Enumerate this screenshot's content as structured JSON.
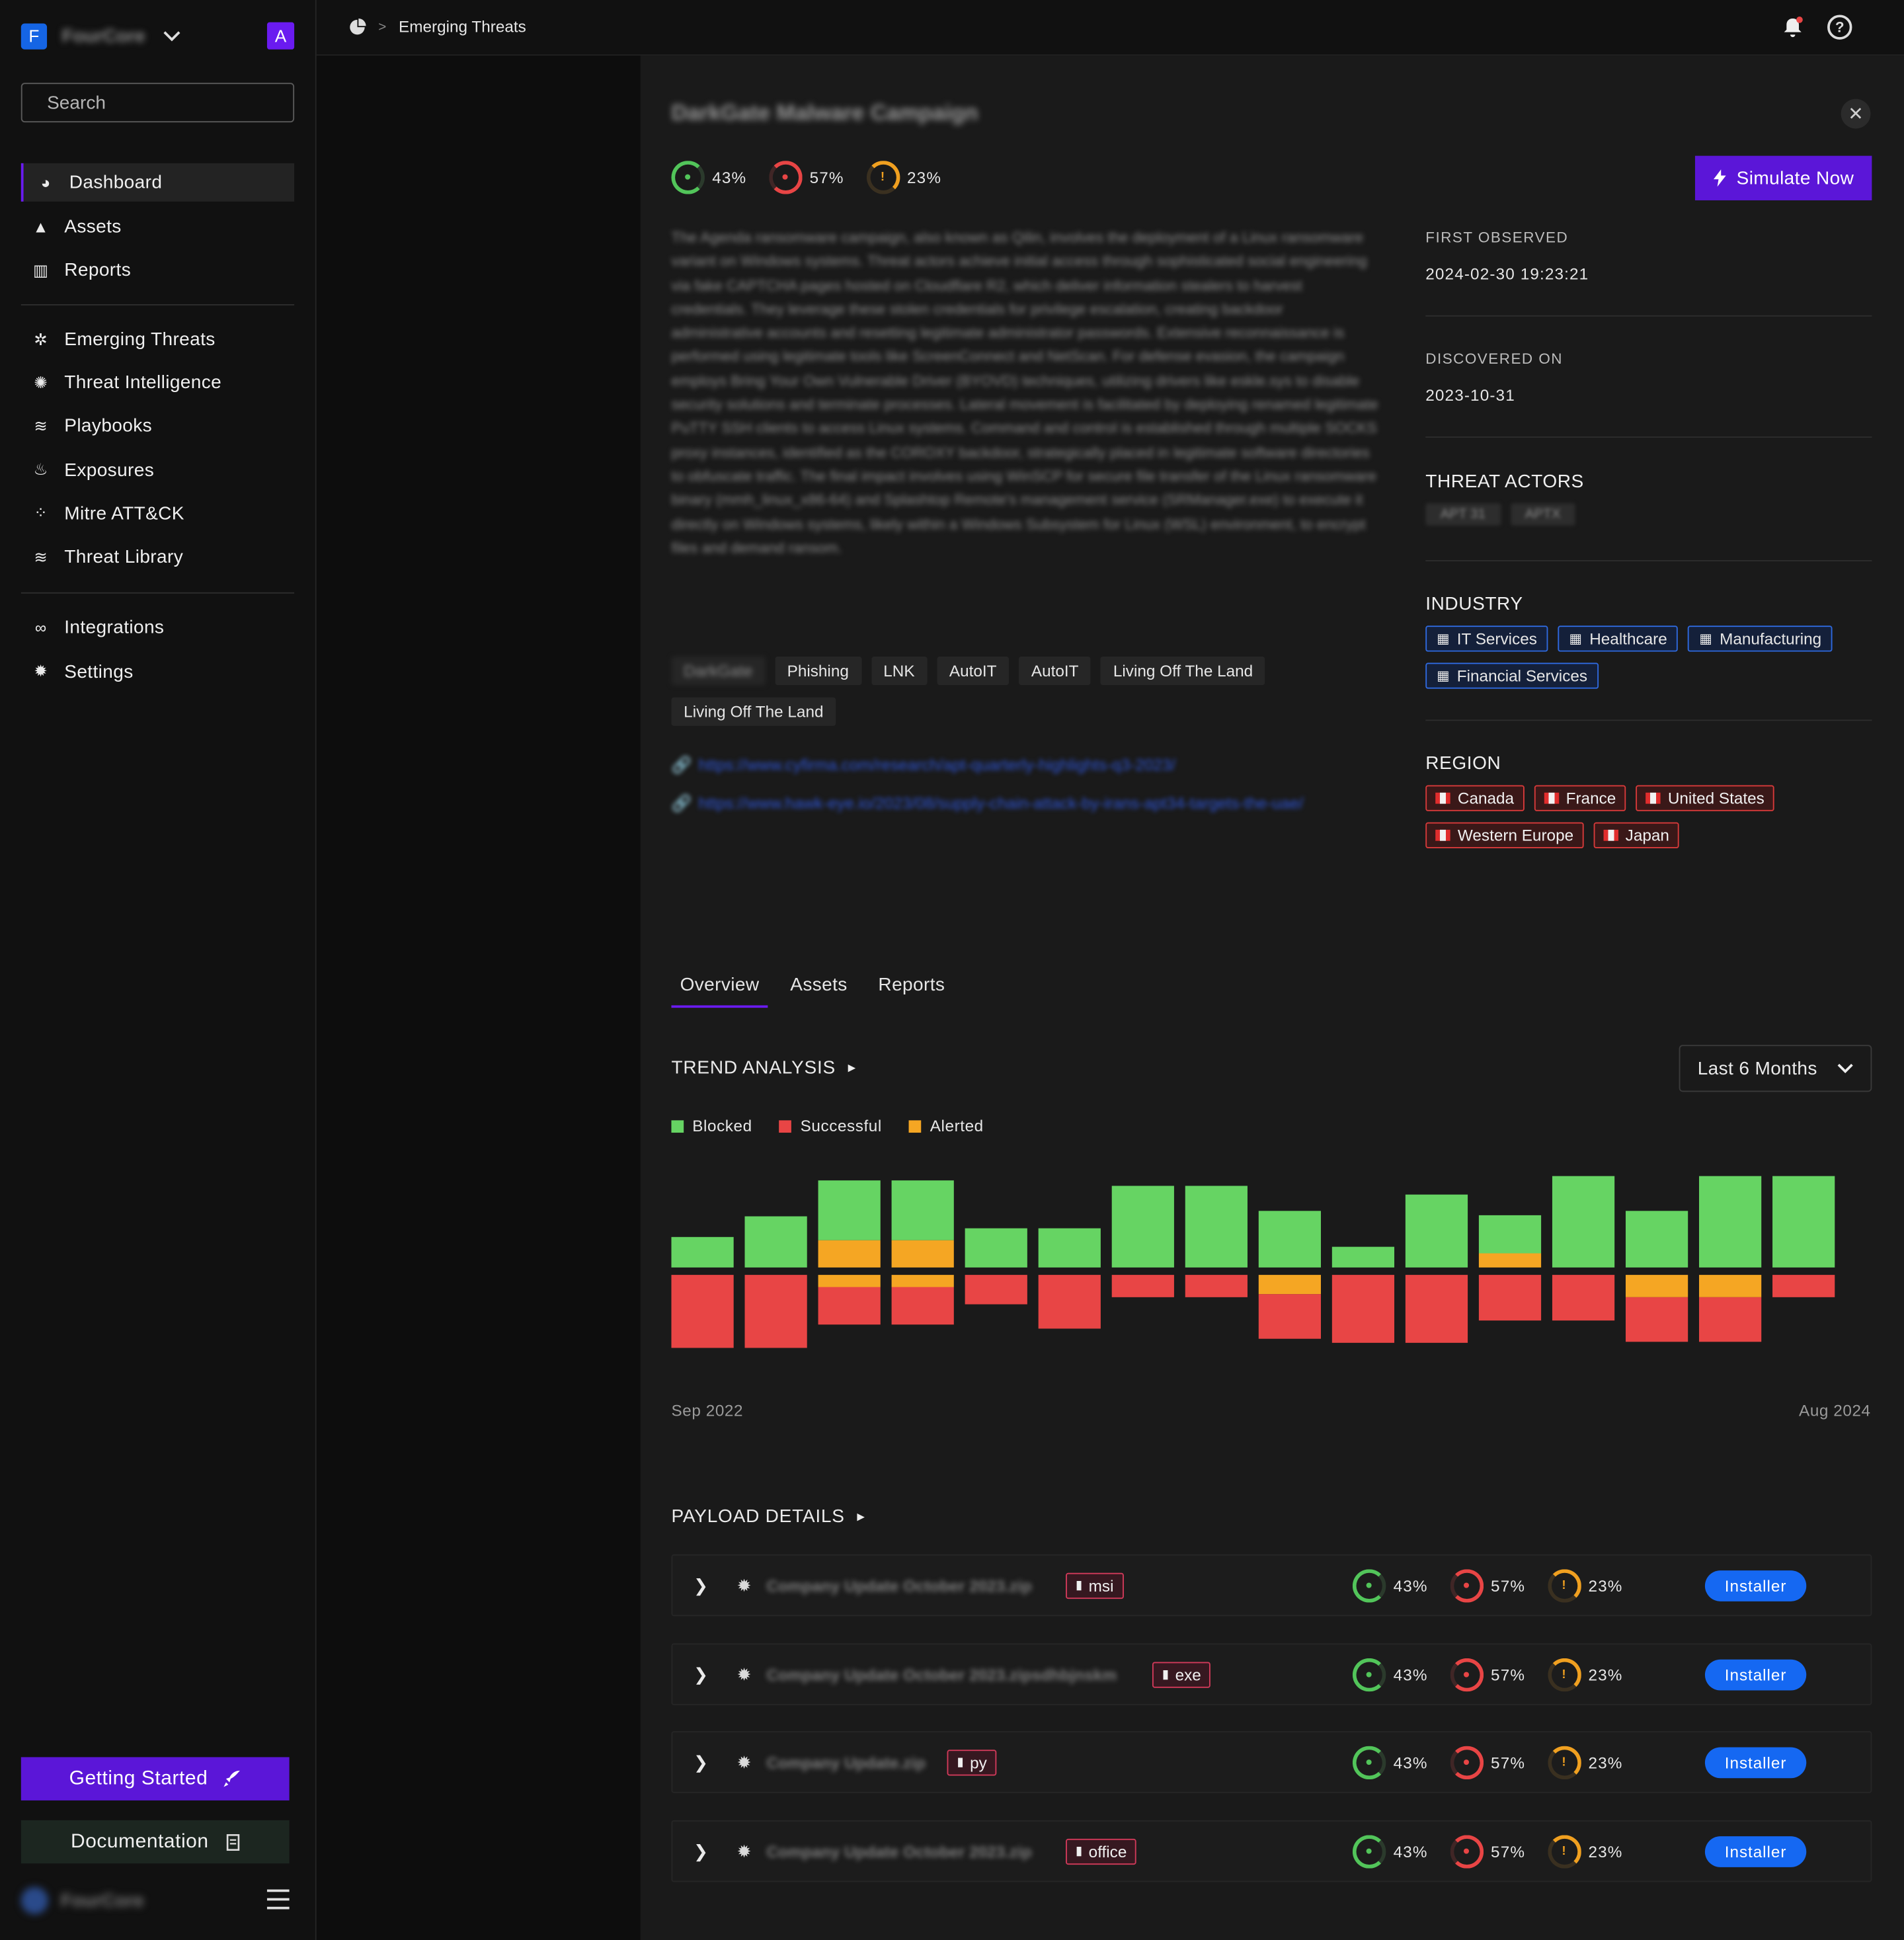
{
  "sidebar": {
    "org_initial": "F",
    "org_name": "FourCore",
    "user_initial": "A",
    "search_placeholder": "Search",
    "group1": [
      {
        "label": "Dashboard",
        "icon": "pie-chart-icon",
        "active": true
      },
      {
        "label": "Assets",
        "icon": "shapes-icon"
      },
      {
        "label": "Reports",
        "icon": "bar-chart-icon"
      }
    ],
    "group2": [
      {
        "label": "Emerging Threats",
        "icon": "bug-icon"
      },
      {
        "label": "Threat Intelligence",
        "icon": "brain-icon"
      },
      {
        "label": "Playbooks",
        "icon": "layers-icon"
      },
      {
        "label": "Exposures",
        "icon": "flame-icon"
      },
      {
        "label": "Mitre ATT&CK",
        "icon": "grid-icon"
      },
      {
        "label": "Threat Library",
        "icon": "stack-icon"
      }
    ],
    "group3": [
      {
        "label": "Integrations",
        "icon": "link-icon"
      },
      {
        "label": "Settings",
        "icon": "gear-icon"
      }
    ],
    "getting_started": "Getting Started",
    "documentation": "Documentation",
    "footer_logo": "FourCore"
  },
  "topbar": {
    "breadcrumb": "Emerging Threats"
  },
  "detail": {
    "title": "DarkGate Malware Campaign",
    "stats": {
      "blocked": "43%",
      "successful": "57%",
      "alerted": "23%"
    },
    "simulate_label": "Simulate Now",
    "description": "The Agenda ransomware campaign, also known as Qilin, involves the deployment of a Linux ransomware variant on Windows systems. Threat actors achieve initial access through sophisticated social engineering via fake CAPTCHA pages hosted on Cloudflare R2, which deliver information stealers to harvest credentials. They leverage these stolen credentials for privilege escalation, creating backdoor administrative accounts and resetting legitimate administrator passwords. Extensive reconnaissance is performed using legitimate tools like ScreenConnect and NetScan. For defense evasion, the campaign employs Bring Your Own Vulnerable Driver (BYOVD) techniques, utilizing drivers like eskle.sys to disable security solutions and terminate processes. Lateral movement is facilitated by deploying renamed legitimate PuTTY SSH clients to access Linux systems. Command and control is established through multiple SOCKS proxy instances, identified as the COROXY backdoor, strategically placed in legitimate software directories to obfuscate traffic. The final impact involves using WinSCP for secure file transfer of the Linux ransomware binary (mmh_linux_x86-64) and Splashtop Remote's management service (SRManager.exe) to execute it directly on Windows systems, likely within a Windows Subsystem for Linux (WSL) environment, to encrypt files and demand ransom.",
    "tags": [
      "DarkGate",
      "Phishing",
      "LNK",
      "AutoIT",
      "AutoIT",
      "Living Off The Land",
      "Living Off The Land"
    ],
    "links": [
      "https://www.cyfirma.com/research/apt-quarterly-highlights-q3-2023/",
      "https://www.hawk-eye.io/2023/08/supply-chain-attack-by-irans-apt34-targets-the-uae/"
    ],
    "first_observed_label": "FIRST OBSERVED",
    "first_observed": "2024-02-30 19:23:21",
    "discovered_label": "DISCOVERED ON",
    "discovered": "2023-10-31",
    "actors_label": "THREAT ACTORS",
    "actors": [
      "APT 31",
      "APTX"
    ],
    "industry_label": "INDUSTRY",
    "industries": [
      "IT Services",
      "Healthcare",
      "Manufacturing",
      "Financial Services"
    ],
    "region_label": "REGION",
    "regions": [
      "Canada",
      "France",
      "United States",
      "Western Europe",
      "Japan"
    ],
    "tabs": [
      "Overview",
      "Assets",
      "Reports"
    ],
    "trend_label": "TREND ANALYSIS",
    "range_label": "Last 6 Months",
    "payload_label": "PAYLOAD DETAILS"
  },
  "chart_data": {
    "type": "bar",
    "legend": [
      "Blocked",
      "Successful",
      "Alerted"
    ],
    "colors": {
      "blocked": "#66d463",
      "successful": "#e84545",
      "alerted": "#f5a623"
    },
    "x_start_label": "Sep 2022",
    "x_end_label": "Aug 2024",
    "bars": [
      {
        "blocked": 28,
        "alerted_up": 0,
        "alerted_down": 0,
        "successful": 72
      },
      {
        "blocked": 47,
        "alerted_up": 0,
        "alerted_down": 0,
        "successful": 72
      },
      {
        "blocked": 55,
        "alerted_up": 25,
        "alerted_down": 12,
        "successful": 37
      },
      {
        "blocked": 55,
        "alerted_up": 25,
        "alerted_down": 12,
        "successful": 37
      },
      {
        "blocked": 36,
        "alerted_up": 0,
        "alerted_down": 0,
        "successful": 29
      },
      {
        "blocked": 36,
        "alerted_up": 0,
        "alerted_down": 0,
        "successful": 53
      },
      {
        "blocked": 75,
        "alerted_up": 0,
        "alerted_down": 0,
        "successful": 22
      },
      {
        "blocked": 75,
        "alerted_up": 0,
        "alerted_down": 0,
        "successful": 22
      },
      {
        "blocked": 52,
        "alerted_up": 0,
        "alerted_down": 19,
        "successful": 44
      },
      {
        "blocked": 19,
        "alerted_up": 0,
        "alerted_down": 0,
        "successful": 67
      },
      {
        "blocked": 67,
        "alerted_up": 0,
        "alerted_down": 0,
        "successful": 67
      },
      {
        "blocked": 35,
        "alerted_up": 13,
        "alerted_down": 0,
        "successful": 45
      },
      {
        "blocked": 84,
        "alerted_up": 0,
        "alerted_down": 0,
        "successful": 45
      },
      {
        "blocked": 52,
        "alerted_up": 0,
        "alerted_down": 22,
        "successful": 44
      },
      {
        "blocked": 84,
        "alerted_up": 0,
        "alerted_down": 22,
        "successful": 44
      },
      {
        "blocked": 84,
        "alerted_up": 0,
        "alerted_down": 0,
        "successful": 22
      }
    ]
  },
  "payloads": [
    {
      "name": "Company Update October 2023.zip",
      "type": "msi",
      "blocked": "43%",
      "successful": "57%",
      "alerted": "23%",
      "action": "Installer"
    },
    {
      "name": "Company Update October 2023.zipsdhbjnskm",
      "type": "exe",
      "blocked": "43%",
      "successful": "57%",
      "alerted": "23%",
      "action": "Installer"
    },
    {
      "name": "Company Update.zip",
      "type": "py",
      "blocked": "43%",
      "successful": "57%",
      "alerted": "23%",
      "action": "Installer"
    },
    {
      "name": "Company Update October 2023.zip",
      "type": "office",
      "blocked": "43%",
      "successful": "57%",
      "alerted": "23%",
      "action": "Installer"
    }
  ]
}
